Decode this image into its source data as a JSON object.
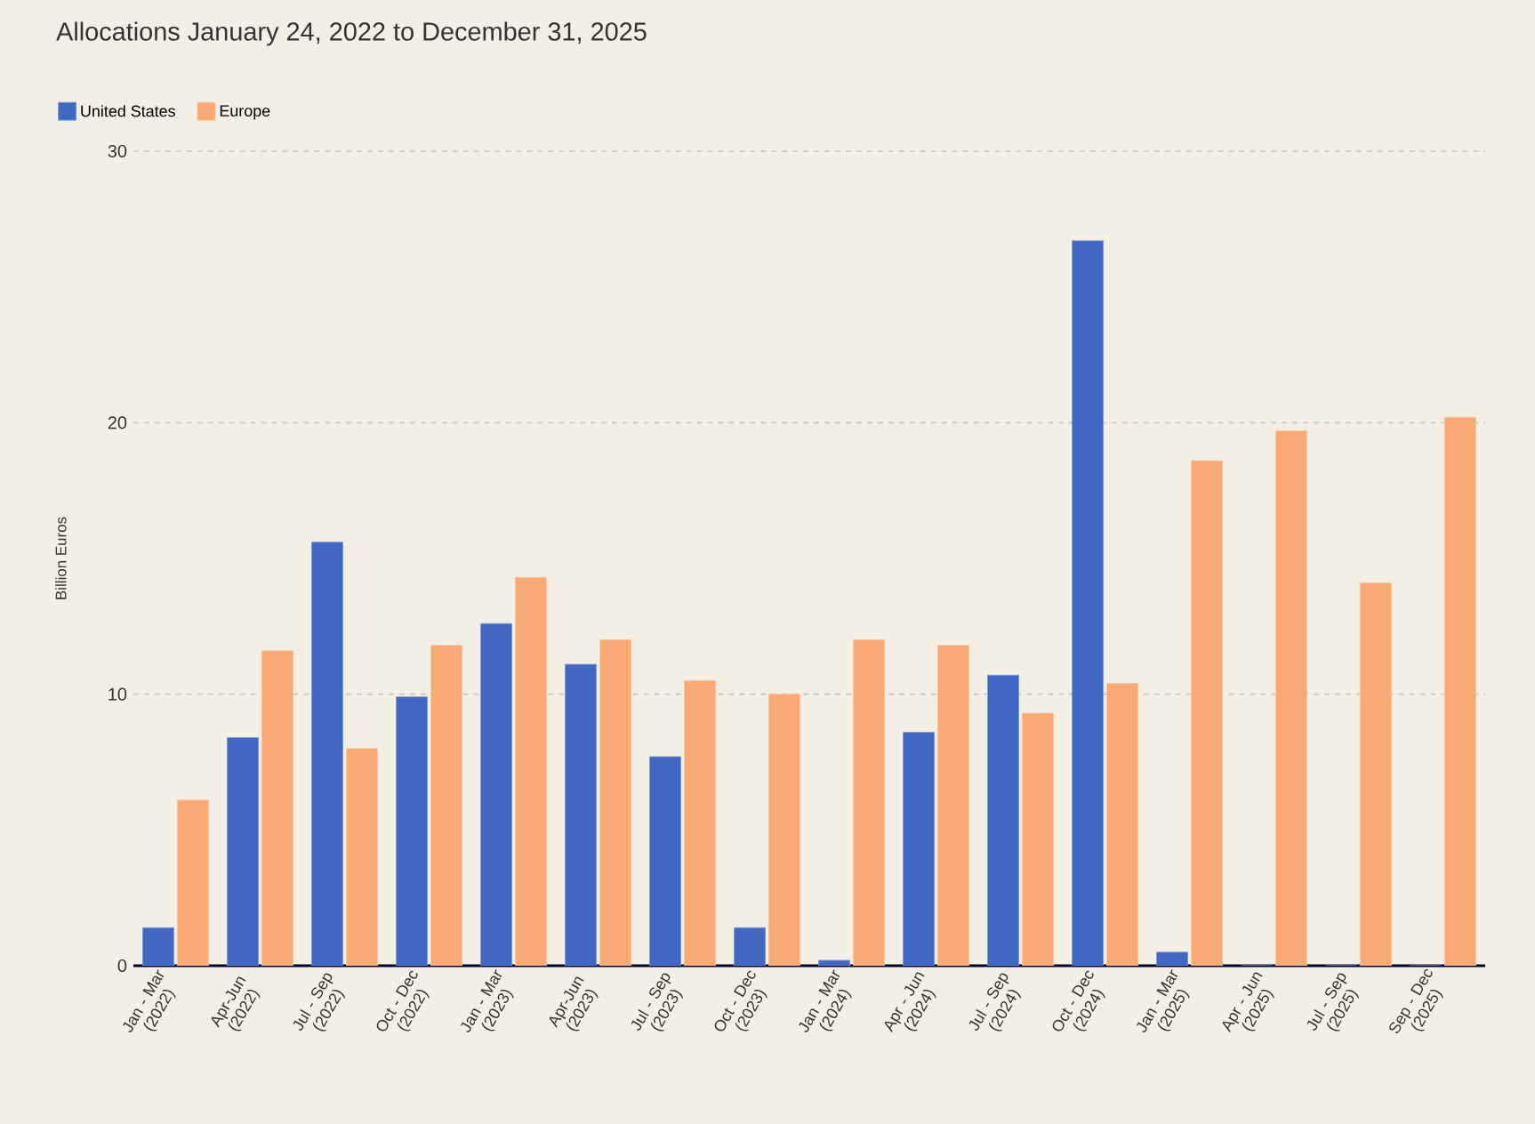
{
  "chart_data": {
    "type": "bar",
    "title": "Allocations January 24, 2022 to December 31, 2025",
    "ylabel": "Billion Euros",
    "categories": [
      "Jan - Mar (2022)",
      "Apr-Jun (2022)",
      "Jul - Sep (2022)",
      "Oct - Dec (2022)",
      "Jan - Mar (2023)",
      "Apr-Jun (2023)",
      "Jul - Sep (2023)",
      "Oct - Dec (2023)",
      "Jan - Mar (2024)",
      "Apr - Jun (2024)",
      "Jul - Sep (2024)",
      "Oct - Dec (2024)",
      "Jan - Mar (2025)",
      "Apr - Jun (2025)",
      "Jul - Sep (2025)",
      "Sep - Dec (2025)"
    ],
    "series": [
      {
        "name": "United States",
        "color": "#4169c4",
        "values": [
          1.4,
          8.4,
          15.6,
          9.9,
          12.6,
          11.1,
          7.7,
          1.4,
          0.2,
          8.6,
          10.7,
          26.7,
          0.5,
          0,
          0,
          0
        ]
      },
      {
        "name": "Europe",
        "color": "#f9aa74",
        "values": [
          6.1,
          11.6,
          8.0,
          11.8,
          14.3,
          12.0,
          10.5,
          10.0,
          12.0,
          11.8,
          9.3,
          10.4,
          18.6,
          19.7,
          14.1,
          20.2
        ]
      }
    ],
    "ylim": [
      0,
      30
    ],
    "yticks": [
      0,
      10,
      20,
      30
    ],
    "grid": "y",
    "legend": "top left"
  }
}
